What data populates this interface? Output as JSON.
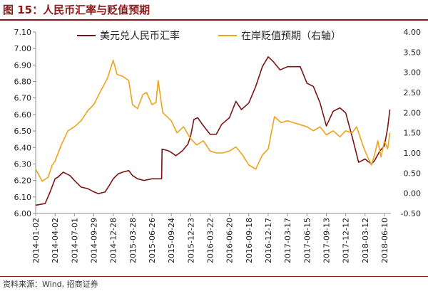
{
  "figure": {
    "title": "图 15：人民币汇率与贬值预期",
    "source": "资料来源：Wind, 招商证券"
  },
  "chart_data": {
    "type": "line",
    "title": "",
    "xlabel": "",
    "ylabel": "",
    "legend_position": "top",
    "grid": false,
    "y_left": {
      "range": [
        6.0,
        7.1
      ],
      "ticks": [
        "6.00",
        "6.10",
        "6.20",
        "6.30",
        "6.40",
        "6.50",
        "6.60",
        "6.70",
        "6.80",
        "6.90",
        "7.00",
        "7.10"
      ]
    },
    "y_right": {
      "label": "右轴",
      "range": [
        -0.5,
        4.0
      ],
      "ticks": [
        "-0.50",
        "0.00",
        "0.50",
        "1.00",
        "1.50",
        "2.00",
        "2.50",
        "3.00",
        "3.50",
        "4.00"
      ]
    },
    "x_ticks": [
      "2014-01-02",
      "2014-04-02",
      "2014-07-01",
      "2014-09-29",
      "2014-12-28",
      "2015-03-28",
      "2015-06-26",
      "2015-09-24",
      "2015-12-23",
      "2016-03-22",
      "2016-06-20",
      "2016-09-18",
      "2016-12-17",
      "2017-03-17",
      "2017-06-15",
      "2017-09-13",
      "2017-12-12",
      "2018-03-12",
      "2018-06-10"
    ],
    "x_range": [
      "2014-01-02",
      "2018-07-10"
    ],
    "series": [
      {
        "name": "美元兑人民币汇率",
        "axis": "left",
        "color": "#7b1416",
        "points": [
          [
            "2014-01-02",
            6.05
          ],
          [
            "2014-02-15",
            6.06
          ],
          [
            "2014-03-10",
            6.13
          ],
          [
            "2014-04-02",
            6.21
          ],
          [
            "2014-04-15",
            6.22
          ],
          [
            "2014-05-10",
            6.25
          ],
          [
            "2014-06-10",
            6.23
          ],
          [
            "2014-07-01",
            6.2
          ],
          [
            "2014-08-01",
            6.16
          ],
          [
            "2014-09-01",
            6.15
          ],
          [
            "2014-10-01",
            6.13
          ],
          [
            "2014-10-20",
            6.12
          ],
          [
            "2014-11-20",
            6.13
          ],
          [
            "2014-12-10",
            6.17
          ],
          [
            "2014-12-28",
            6.21
          ],
          [
            "2015-01-20",
            6.24
          ],
          [
            "2015-02-10",
            6.25
          ],
          [
            "2015-03-10",
            6.26
          ],
          [
            "2015-03-28",
            6.23
          ],
          [
            "2015-04-20",
            6.21
          ],
          [
            "2015-05-20",
            6.2
          ],
          [
            "2015-06-26",
            6.21
          ],
          [
            "2015-08-10",
            6.21
          ],
          [
            "2015-08-12",
            6.39
          ],
          [
            "2015-09-10",
            6.38
          ],
          [
            "2015-09-24",
            6.37
          ],
          [
            "2015-10-15",
            6.35
          ],
          [
            "2015-11-15",
            6.38
          ],
          [
            "2015-12-10",
            6.42
          ],
          [
            "2015-12-23",
            6.47
          ],
          [
            "2016-01-07",
            6.57
          ],
          [
            "2016-01-25",
            6.58
          ],
          [
            "2016-02-15",
            6.54
          ],
          [
            "2016-03-22",
            6.48
          ],
          [
            "2016-04-20",
            6.48
          ],
          [
            "2016-05-15",
            6.54
          ],
          [
            "2016-06-20",
            6.58
          ],
          [
            "2016-07-20",
            6.68
          ],
          [
            "2016-08-15",
            6.63
          ],
          [
            "2016-09-18",
            6.67
          ],
          [
            "2016-10-20",
            6.77
          ],
          [
            "2016-11-20",
            6.89
          ],
          [
            "2016-12-17",
            6.95
          ],
          [
            "2017-01-10",
            6.92
          ],
          [
            "2017-02-10",
            6.87
          ],
          [
            "2017-03-17",
            6.89
          ],
          [
            "2017-04-15",
            6.89
          ],
          [
            "2017-05-15",
            6.89
          ],
          [
            "2017-06-15",
            6.79
          ],
          [
            "2017-07-15",
            6.77
          ],
          [
            "2017-08-15",
            6.67
          ],
          [
            "2017-09-13",
            6.53
          ],
          [
            "2017-10-15",
            6.62
          ],
          [
            "2017-11-15",
            6.64
          ],
          [
            "2017-12-12",
            6.61
          ],
          [
            "2018-01-10",
            6.47
          ],
          [
            "2018-02-10",
            6.31
          ],
          [
            "2018-03-12",
            6.33
          ],
          [
            "2018-04-10",
            6.3
          ],
          [
            "2018-04-25",
            6.32
          ],
          [
            "2018-05-20",
            6.38
          ],
          [
            "2018-06-10",
            6.41
          ],
          [
            "2018-06-25",
            6.52
          ],
          [
            "2018-07-05",
            6.63
          ]
        ]
      },
      {
        "name": "在岸贬值预期",
        "axis": "right",
        "color": "#f0a21a",
        "points": [
          [
            "2014-01-02",
            0.6
          ],
          [
            "2014-02-01",
            0.3
          ],
          [
            "2014-03-01",
            0.4
          ],
          [
            "2014-03-20",
            0.7
          ],
          [
            "2014-04-02",
            0.8
          ],
          [
            "2014-05-01",
            1.2
          ],
          [
            "2014-06-01",
            1.55
          ],
          [
            "2014-07-01",
            1.65
          ],
          [
            "2014-08-01",
            1.8
          ],
          [
            "2014-09-01",
            2.05
          ],
          [
            "2014-09-29",
            2.2
          ],
          [
            "2014-11-01",
            2.55
          ],
          [
            "2014-12-01",
            2.85
          ],
          [
            "2014-12-28",
            3.3
          ],
          [
            "2015-01-15",
            2.95
          ],
          [
            "2015-02-10",
            2.9
          ],
          [
            "2015-03-10",
            2.8
          ],
          [
            "2015-03-28",
            2.2
          ],
          [
            "2015-04-20",
            2.1
          ],
          [
            "2015-05-15",
            2.45
          ],
          [
            "2015-06-01",
            2.5
          ],
          [
            "2015-06-26",
            2.2
          ],
          [
            "2015-07-15",
            2.25
          ],
          [
            "2015-07-25",
            2.8
          ],
          [
            "2015-08-15",
            2.0
          ],
          [
            "2015-09-24",
            1.8
          ],
          [
            "2015-10-20",
            1.5
          ],
          [
            "2015-11-20",
            1.65
          ],
          [
            "2015-12-23",
            1.35
          ],
          [
            "2016-01-20",
            1.2
          ],
          [
            "2016-02-20",
            1.3
          ],
          [
            "2016-03-22",
            1.05
          ],
          [
            "2016-04-20",
            1.0
          ],
          [
            "2016-05-20",
            1.0
          ],
          [
            "2016-06-20",
            1.05
          ],
          [
            "2016-07-20",
            1.15
          ],
          [
            "2016-08-20",
            0.95
          ],
          [
            "2016-09-18",
            0.7
          ],
          [
            "2016-10-20",
            0.6
          ],
          [
            "2016-11-20",
            0.95
          ],
          [
            "2016-12-17",
            1.1
          ],
          [
            "2017-01-15",
            1.9
          ],
          [
            "2017-02-15",
            1.75
          ],
          [
            "2017-03-17",
            1.8
          ],
          [
            "2017-04-15",
            1.75
          ],
          [
            "2017-05-15",
            1.7
          ],
          [
            "2017-06-15",
            1.65
          ],
          [
            "2017-07-15",
            1.55
          ],
          [
            "2017-08-15",
            1.65
          ],
          [
            "2017-09-13",
            1.45
          ],
          [
            "2017-10-15",
            1.55
          ],
          [
            "2017-11-15",
            1.4
          ],
          [
            "2017-12-12",
            1.55
          ],
          [
            "2018-01-10",
            1.5
          ],
          [
            "2018-02-01",
            1.65
          ],
          [
            "2018-03-01",
            1.2
          ],
          [
            "2018-03-12",
            1.05
          ],
          [
            "2018-04-10",
            0.7
          ],
          [
            "2018-04-25",
            0.95
          ],
          [
            "2018-05-10",
            1.3
          ],
          [
            "2018-05-25",
            0.9
          ],
          [
            "2018-06-10",
            1.3
          ],
          [
            "2018-06-25",
            1.1
          ],
          [
            "2018-07-05",
            1.5
          ]
        ]
      }
    ]
  }
}
